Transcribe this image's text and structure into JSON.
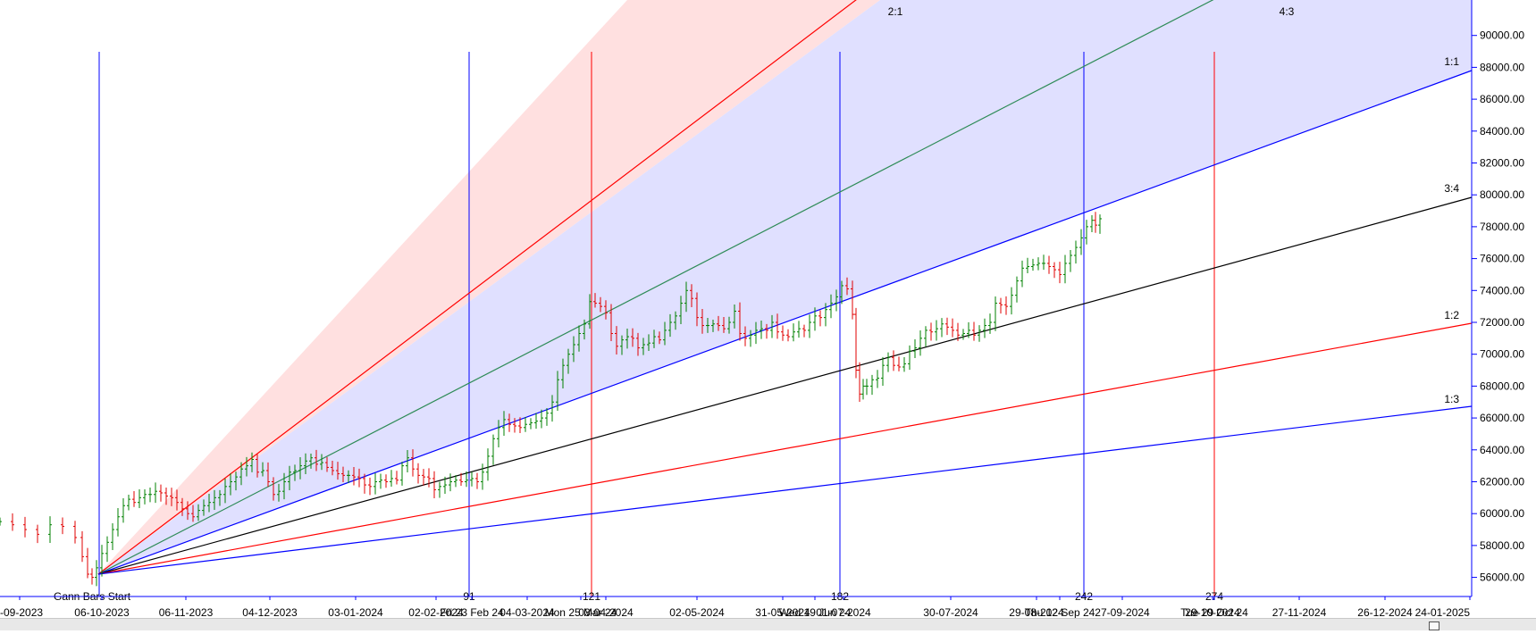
{
  "chart_data": {
    "type": "candlestick",
    "colors": {
      "up": "#008000",
      "down": "#e00000",
      "axis": "#0000ff",
      "fan_fill_upper": "#ffe0e0",
      "fan_fill_middle": "#e0e0ff"
    },
    "y_axis": {
      "ylim": [
        54800,
        92000
      ],
      "ticks": [
        56000,
        58000,
        60000,
        62000,
        64000,
        66000,
        68000,
        70000,
        72000,
        74000,
        76000,
        78000,
        80000,
        82000,
        84000,
        86000,
        88000,
        90000
      ],
      "tick_labels": [
        "56000.00",
        "58000.00",
        "60000.00",
        "62000.00",
        "64000.00",
        "66000.00",
        "68000.00",
        "70000.00",
        "72000.00",
        "74000.00",
        "76000.00",
        "78000.00",
        "80000.00",
        "82000.00",
        "84000.00",
        "86000.00",
        "88000.00",
        "90000.00"
      ]
    },
    "x_axis": {
      "date_labels": [
        "-09-2023",
        "06-10-2023",
        "06-11-2023",
        "04-12-2023",
        "03-01-2024",
        "02-02-2024",
        "Fri 23 Feb 24",
        "04-03-2024",
        "Mon 25 Mar 24",
        "03-04-2024",
        "02-05-2024",
        "31-05-2024",
        "Wed 19 Jun 24",
        "01-07-2024",
        "30-07-2024",
        "29-08-2024",
        "Thu 12 Sep 24",
        "27-09-2024",
        "Tue 29 Oct 24",
        "29-10-2024",
        "27-11-2024",
        "26-12-2024",
        "24-01-2025"
      ],
      "cycle_counts": [
        "91",
        "121",
        "182",
        "242",
        "274"
      ]
    },
    "gann_fan": {
      "start_label": "Gann Bars Start",
      "angles": [
        {
          "label": "2:1",
          "color": "#ff0000"
        },
        {
          "label": "4:3",
          "color": "#2e8b57"
        },
        {
          "label": "1:1",
          "color": "#0000ff"
        },
        {
          "label": "3:4",
          "color": "#000000"
        },
        {
          "label": "1:2",
          "color": "#ff0000"
        },
        {
          "label": "1:3",
          "color": "#0000ff"
        }
      ]
    },
    "price_path": [
      [
        0,
        59500
      ],
      [
        14,
        59300
      ],
      [
        28,
        59000
      ],
      [
        42,
        58700
      ],
      [
        56,
        59300
      ],
      [
        70,
        59200
      ],
      [
        84,
        58500
      ],
      [
        92,
        57300
      ],
      [
        98,
        56200
      ],
      [
        103,
        56000
      ],
      [
        108,
        56600
      ],
      [
        114,
        57500
      ],
      [
        120,
        58200
      ],
      [
        126,
        59000
      ],
      [
        132,
        59800
      ],
      [
        138,
        60500
      ],
      [
        144,
        60900
      ],
      [
        150,
        60700
      ],
      [
        156,
        61000
      ],
      [
        162,
        61200
      ],
      [
        168,
        61200
      ],
      [
        174,
        61400
      ],
      [
        180,
        61300
      ],
      [
        186,
        61100
      ],
      [
        192,
        61000
      ],
      [
        198,
        60700
      ],
      [
        204,
        60300
      ],
      [
        210,
        60000
      ],
      [
        216,
        59800
      ],
      [
        222,
        60200
      ],
      [
        228,
        60500
      ],
      [
        234,
        60700
      ],
      [
        240,
        61000
      ],
      [
        246,
        61200
      ],
      [
        252,
        61700
      ],
      [
        258,
        62000
      ],
      [
        264,
        62300
      ],
      [
        270,
        62800
      ],
      [
        276,
        63000
      ],
      [
        282,
        63400
      ],
      [
        288,
        62600
      ],
      [
        294,
        62700
      ],
      [
        300,
        62000
      ],
      [
        306,
        61200
      ],
      [
        312,
        61400
      ],
      [
        318,
        62000
      ],
      [
        324,
        62600
      ],
      [
        330,
        62700
      ],
      [
        336,
        63000
      ],
      [
        342,
        63300
      ],
      [
        348,
        63500
      ],
      [
        354,
        63100
      ],
      [
        360,
        63200
      ],
      [
        366,
        62900
      ],
      [
        372,
        62700
      ],
      [
        378,
        62500
      ],
      [
        384,
        62400
      ],
      [
        390,
        62400
      ],
      [
        396,
        62300
      ],
      [
        402,
        62200
      ],
      [
        408,
        61800
      ],
      [
        414,
        61700
      ],
      [
        420,
        62000
      ],
      [
        426,
        62100
      ],
      [
        432,
        62000
      ],
      [
        438,
        62200
      ],
      [
        444,
        62100
      ],
      [
        450,
        63000
      ],
      [
        456,
        63500
      ],
      [
        462,
        62800
      ],
      [
        468,
        62400
      ],
      [
        474,
        62300
      ],
      [
        480,
        62200
      ],
      [
        486,
        61500
      ],
      [
        492,
        61700
      ],
      [
        498,
        61800
      ],
      [
        504,
        62000
      ],
      [
        510,
        62100
      ],
      [
        516,
        62000
      ],
      [
        522,
        62100
      ],
      [
        528,
        62200
      ],
      [
        534,
        62000
      ],
      [
        540,
        62600
      ],
      [
        546,
        63600
      ],
      [
        552,
        64700
      ],
      [
        558,
        65400
      ],
      [
        564,
        65900
      ],
      [
        570,
        65600
      ],
      [
        576,
        65500
      ],
      [
        582,
        65400
      ],
      [
        588,
        65600
      ],
      [
        594,
        65700
      ],
      [
        600,
        65800
      ],
      [
        606,
        66000
      ],
      [
        612,
        66300
      ],
      [
        618,
        67000
      ],
      [
        624,
        68400
      ],
      [
        630,
        69300
      ],
      [
        636,
        70000
      ],
      [
        642,
        70600
      ],
      [
        648,
        71300
      ],
      [
        654,
        71900
      ],
      [
        660,
        73300
      ],
      [
        666,
        73200
      ],
      [
        672,
        73000
      ],
      [
        678,
        72600
      ],
      [
        684,
        71300
      ],
      [
        690,
        70500
      ],
      [
        696,
        70900
      ],
      [
        702,
        71100
      ],
      [
        708,
        71000
      ],
      [
        714,
        70400
      ],
      [
        720,
        70600
      ],
      [
        726,
        70700
      ],
      [
        732,
        71100
      ],
      [
        738,
        70900
      ],
      [
        744,
        71500
      ],
      [
        750,
        72000
      ],
      [
        756,
        72400
      ],
      [
        762,
        73200
      ],
      [
        768,
        74000
      ],
      [
        774,
        73500
      ],
      [
        780,
        72300
      ],
      [
        786,
        71800
      ],
      [
        792,
        71800
      ],
      [
        798,
        71900
      ],
      [
        804,
        71800
      ],
      [
        810,
        71600
      ],
      [
        816,
        72000
      ],
      [
        822,
        72700
      ],
      [
        828,
        71300
      ],
      [
        834,
        71000
      ],
      [
        840,
        71200
      ],
      [
        846,
        71500
      ],
      [
        852,
        71600
      ],
      [
        858,
        71500
      ],
      [
        864,
        72000
      ],
      [
        870,
        71400
      ],
      [
        876,
        71200
      ],
      [
        882,
        71100
      ],
      [
        888,
        71400
      ],
      [
        894,
        71600
      ],
      [
        900,
        71500
      ],
      [
        906,
        72000
      ],
      [
        912,
        72400
      ],
      [
        918,
        72300
      ],
      [
        924,
        72800
      ],
      [
        930,
        73200
      ],
      [
        936,
        73600
      ],
      [
        942,
        74300
      ],
      [
        948,
        74100
      ],
      [
        954,
        72500
      ],
      [
        958,
        69000
      ],
      [
        962,
        67500
      ],
      [
        966,
        68000
      ],
      [
        970,
        68000
      ],
      [
        976,
        68400
      ],
      [
        982,
        68500
      ],
      [
        988,
        69300
      ],
      [
        994,
        69800
      ],
      [
        1000,
        69300
      ],
      [
        1006,
        69200
      ],
      [
        1012,
        69400
      ],
      [
        1018,
        70200
      ],
      [
        1024,
        70400
      ],
      [
        1030,
        71000
      ],
      [
        1036,
        71500
      ],
      [
        1042,
        71400
      ],
      [
        1048,
        71600
      ],
      [
        1054,
        71900
      ],
      [
        1060,
        71700
      ],
      [
        1066,
        71500
      ],
      [
        1072,
        71200
      ],
      [
        1078,
        71300
      ],
      [
        1084,
        71500
      ],
      [
        1090,
        71200
      ],
      [
        1096,
        71500
      ],
      [
        1102,
        71800
      ],
      [
        1108,
        72000
      ],
      [
        1114,
        73200
      ],
      [
        1120,
        73100
      ],
      [
        1126,
        73000
      ],
      [
        1132,
        73700
      ],
      [
        1138,
        74600
      ],
      [
        1144,
        75400
      ],
      [
        1150,
        75500
      ],
      [
        1156,
        75600
      ],
      [
        1162,
        75700
      ],
      [
        1168,
        75700
      ],
      [
        1174,
        75500
      ],
      [
        1180,
        75300
      ],
      [
        1186,
        75000
      ],
      [
        1192,
        75700
      ],
      [
        1198,
        76200
      ],
      [
        1204,
        76700
      ],
      [
        1210,
        77300
      ],
      [
        1216,
        78000
      ],
      [
        1222,
        78400
      ],
      [
        1226,
        78100
      ],
      [
        1231,
        78500
      ]
    ]
  }
}
